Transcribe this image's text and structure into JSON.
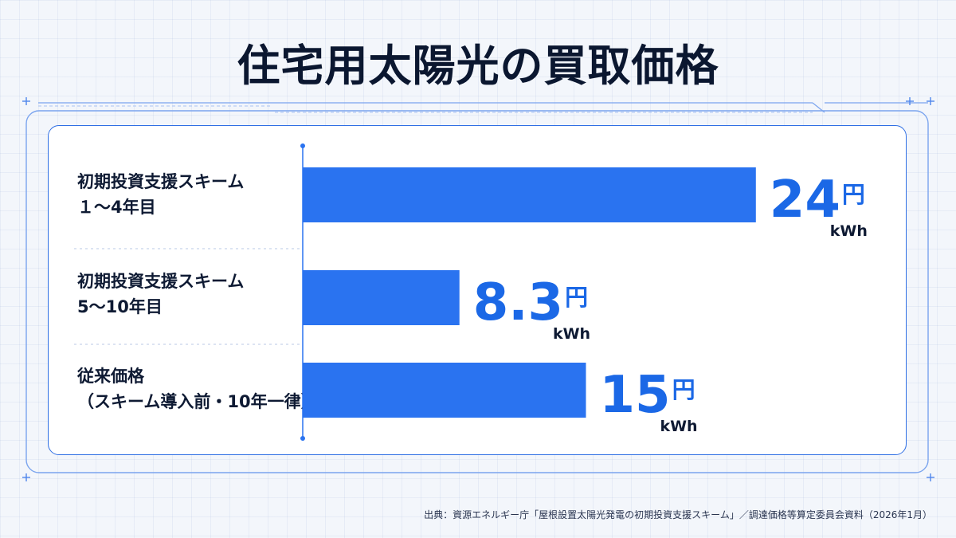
{
  "chart_data": {
    "type": "bar",
    "orientation": "horizontal",
    "title": "住宅用太陽光の買取価格",
    "categories": [
      [
        "初期投資支援スキーム",
        "１～4年目"
      ],
      [
        "初期投資支援スキーム",
        "5～10年目"
      ],
      [
        "従来価格",
        "（スキーム導入前・10年一律）"
      ]
    ],
    "values": [
      24,
      8.3,
      15
    ],
    "value_labels": [
      "24",
      "8.3",
      "15"
    ],
    "unit_top": "円",
    "unit_bottom": "kWh",
    "xlim": [
      0,
      30
    ],
    "bar_color": "#2a73f0",
    "value_color": "#1b68e6",
    "grid": false
  },
  "source": "出典：資源エネルギー庁「屋根設置太陽光発電の初期投資支援スキーム」／調達価格等算定委員会資料（2026年1月）",
  "colors": {
    "accent": "#2f6fe4",
    "text": "#0e1a33"
  }
}
